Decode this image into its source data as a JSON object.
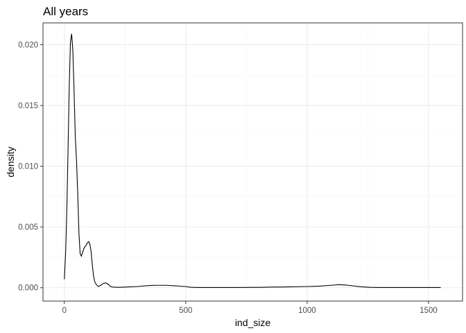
{
  "chart_data": {
    "type": "line",
    "title": "All years",
    "xlabel": "ind_size",
    "ylabel": "density",
    "xlim": [
      -88,
      1640
    ],
    "ylim": [
      -0.0011,
      0.0218
    ],
    "x_ticks": [
      0,
      500,
      1000,
      1500
    ],
    "x_tick_labels": [
      "0",
      "500",
      "1000",
      "1500"
    ],
    "y_ticks": [
      0.0,
      0.005,
      0.01,
      0.015,
      0.02
    ],
    "y_tick_labels": [
      "0.000",
      "0.005",
      "0.010",
      "0.015",
      "0.020"
    ],
    "grid": true,
    "legend": "none",
    "series": [
      {
        "color": "#000000",
        "x": [
          0,
          5,
          10,
          15,
          20,
          25,
          30,
          35,
          40,
          45,
          50,
          55,
          60,
          65,
          70,
          75,
          80,
          85,
          90,
          95,
          100,
          105,
          110,
          115,
          120,
          125,
          130,
          135,
          140,
          145,
          150,
          160,
          170,
          180,
          190,
          200,
          220,
          250,
          300,
          350,
          380,
          420,
          460,
          500,
          520,
          550,
          600,
          700,
          800,
          850,
          900,
          1000,
          1050,
          1100,
          1130,
          1160,
          1190,
          1220,
          1260,
          1300,
          1400,
          1500,
          1550
        ],
        "y": [
          0.0007,
          0.0028,
          0.0062,
          0.0112,
          0.0165,
          0.0202,
          0.0209,
          0.0195,
          0.0162,
          0.0124,
          0.0105,
          0.0078,
          0.0045,
          0.0028,
          0.0026,
          0.0029,
          0.0032,
          0.0034,
          0.0035,
          0.0037,
          0.0038,
          0.0036,
          0.003,
          0.0019,
          0.001,
          0.0005,
          0.0003,
          0.0002,
          0.0001,
          0.00015,
          0.0002,
          0.00035,
          0.0004,
          0.0003,
          0.0001,
          5e-05,
          3e-05,
          5e-05,
          0.0001,
          0.00018,
          0.0002,
          0.0002,
          0.00015,
          0.0001,
          4e-05,
          2e-05,
          2e-05,
          2e-05,
          3e-05,
          5e-05,
          6e-05,
          0.0001,
          0.00013,
          0.0002,
          0.00025,
          0.00022,
          0.00015,
          8e-05,
          3e-05,
          2e-05,
          2e-05,
          2e-05,
          2e-05
        ]
      }
    ]
  }
}
